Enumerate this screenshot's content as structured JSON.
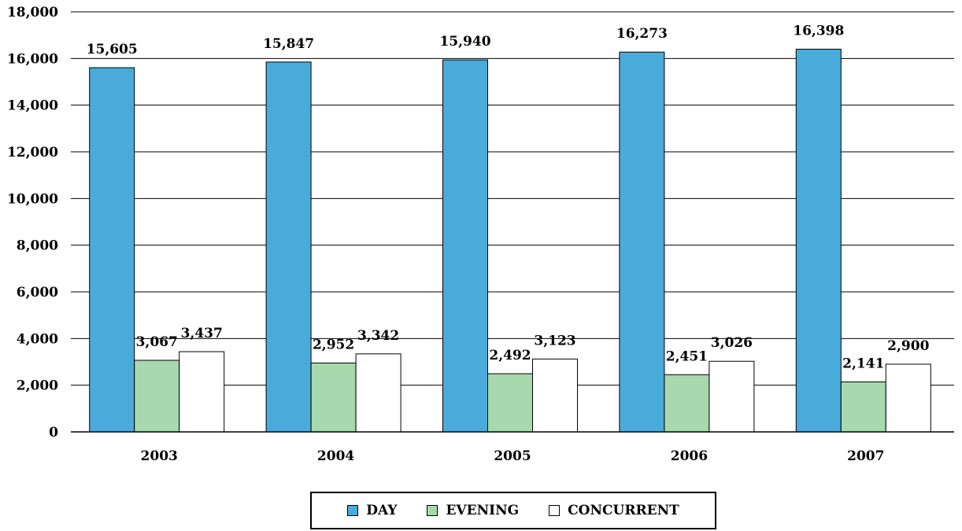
{
  "chart_data": {
    "type": "bar",
    "title": "",
    "xlabel": "",
    "ylabel": "",
    "ylim": [
      0,
      18000
    ],
    "yticks": [
      0,
      2000,
      4000,
      6000,
      8000,
      10000,
      12000,
      14000,
      16000,
      18000
    ],
    "ytick_labels": [
      "0",
      "2,000",
      "4,000",
      "6,000",
      "8,000",
      "10,000",
      "12,000",
      "14,000",
      "16,000",
      "18,000"
    ],
    "categories": [
      "2003",
      "2004",
      "2005",
      "2006",
      "2007"
    ],
    "grid": true,
    "legend_position": "bottom",
    "series": [
      {
        "name": "DAY",
        "color": "#4aabdb",
        "values": [
          15605,
          15847,
          15940,
          16273,
          16398
        ],
        "labels": [
          "15,605",
          "15,847",
          "15,940",
          "16,273",
          "16,398"
        ]
      },
      {
        "name": "EVENING",
        "color": "#a8d9ae",
        "values": [
          3067,
          2952,
          2492,
          2451,
          2141
        ],
        "labels": [
          "3,067",
          "2,952",
          "2,492",
          "2,451",
          "2,141"
        ]
      },
      {
        "name": "CONCURRENT",
        "color": "#ffffff",
        "values": [
          3437,
          3342,
          3123,
          3026,
          2900
        ],
        "labels": [
          "3,437",
          "3,342",
          "3,123",
          "3,026",
          "2,900"
        ]
      }
    ]
  }
}
